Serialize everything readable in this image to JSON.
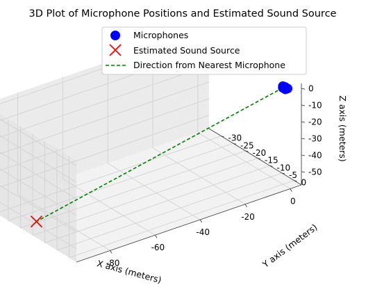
{
  "chart_data": {
    "type": "scatter",
    "projection": "3d",
    "title": "3D Plot of Microphone Positions and Estimated Sound Source",
    "xlabel": "X axis (meters)",
    "ylabel": "Y axis (meters)",
    "zlabel": "Z axis (meters)",
    "xlim": [
      -95,
      5
    ],
    "ylim": [
      -35,
      3
    ],
    "zlim": [
      -58,
      3
    ],
    "x_ticks": [
      -80,
      -60,
      -40,
      -20,
      0
    ],
    "y_ticks": [
      0,
      -5,
      -10,
      -15,
      -20,
      -25,
      -30
    ],
    "z_ticks": [
      0,
      -10,
      -20,
      -30,
      -40,
      -50
    ],
    "grid": true,
    "legend_position": "upper-center",
    "legend": [
      {
        "label": "Microphones",
        "marker": "circle",
        "color": "#0000ff"
      },
      {
        "label": "Estimated Sound Source",
        "marker": "x",
        "color": "#ff0000"
      },
      {
        "label": "Direction from Nearest Microphone",
        "marker": "dashed-line",
        "color": "#008000"
      }
    ],
    "series": [
      {
        "name": "Microphones",
        "kind": "scatter",
        "color": "#0000ff",
        "points": [
          {
            "x": 0,
            "y": 0,
            "z": 0
          },
          {
            "x": 1,
            "y": 0,
            "z": 0
          },
          {
            "x": 0,
            "y": 1,
            "z": 0
          },
          {
            "x": 0,
            "y": 0,
            "z": 1
          },
          {
            "x": 1,
            "y": 1,
            "z": 0
          }
        ]
      },
      {
        "name": "Estimated Sound Source",
        "kind": "scatter",
        "color": "#ff0000",
        "points": [
          {
            "x": -89,
            "y": -19,
            "z": -56
          }
        ]
      },
      {
        "name": "Direction from Nearest Microphone",
        "kind": "line",
        "style": "dashed",
        "color": "#008000",
        "points": [
          {
            "x": 0,
            "y": 0,
            "z": 0
          },
          {
            "x": -89,
            "y": -19,
            "z": -56
          }
        ]
      }
    ]
  }
}
